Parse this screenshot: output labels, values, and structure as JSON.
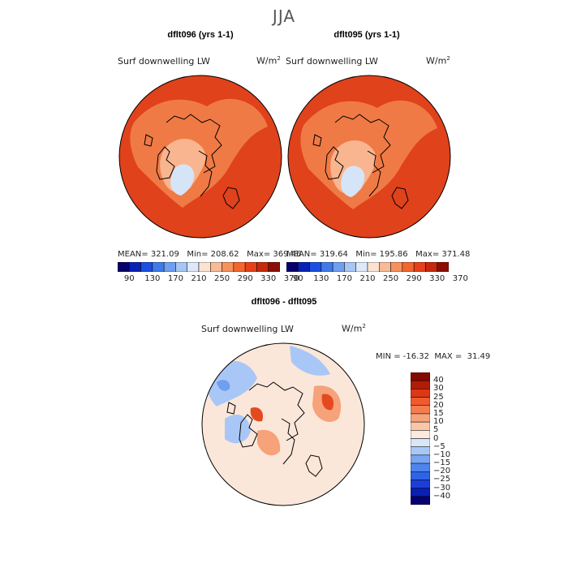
{
  "season": "JJA",
  "panels": [
    {
      "title": "dflt096 (yrs 1-1)",
      "variable": "Surf downwelling LW",
      "units_base": "W/m",
      "units_exp": "2",
      "stats": "MEAN= 321.09   Min= 208.62   Max= 369.46"
    },
    {
      "title": "dflt095 (yrs 1-1)",
      "variable": "Surf downwelling LW",
      "units_base": "W/m",
      "units_exp": "2",
      "stats": "MEAN= 319.64   Min= 195.86   Max= 371.48"
    }
  ],
  "diff_panel": {
    "title": "dflt096 - dflt095",
    "variable": "Surf downwelling LW",
    "units_base": "W/m",
    "units_exp": "2",
    "stats": "MIN = -16.32  MAX =  31.49"
  },
  "colorbar": {
    "colors": [
      "#08006a",
      "#0a22b4",
      "#1c4fe0",
      "#3f7ae8",
      "#6fa0ef",
      "#a7c6f4",
      "#dde9f8",
      "#fbe3d3",
      "#f8bb98",
      "#f6915e",
      "#f2662f",
      "#e5411a",
      "#c52a0d",
      "#8c0f05"
    ],
    "ticks": [
      "90",
      "130",
      "170",
      "210",
      "250",
      "290",
      "330",
      "370"
    ]
  },
  "diff_colorbar": {
    "colors": [
      "#060070",
      "#0a1fb3",
      "#1a3fd9",
      "#2f63e5",
      "#4e84ec",
      "#79a6f2",
      "#a9c7f6",
      "#d8e6fa",
      "#fce9dd",
      "#f9c7a8",
      "#f6a27a",
      "#f37d50",
      "#ef5a2e",
      "#dd3714",
      "#b11c06",
      "#820a02"
    ],
    "ticks": [
      "40",
      "30",
      "25",
      "20",
      "15",
      "10",
      "5",
      "0",
      "−5",
      "−10",
      "−15",
      "−20",
      "−25",
      "−30",
      "−40"
    ]
  },
  "map_colors": {
    "ocean_bg": "#e0421c",
    "mid": "#f07a45",
    "low": "#f9b58f",
    "lowest": "#d6e4f8",
    "diff_bg": "#fbe7da",
    "diff_blue": "#a9c7f6",
    "diff_blue_dark": "#6f9ff0",
    "diff_red": "#f6a27a",
    "diff_red_dark": "#e54a1e"
  }
}
